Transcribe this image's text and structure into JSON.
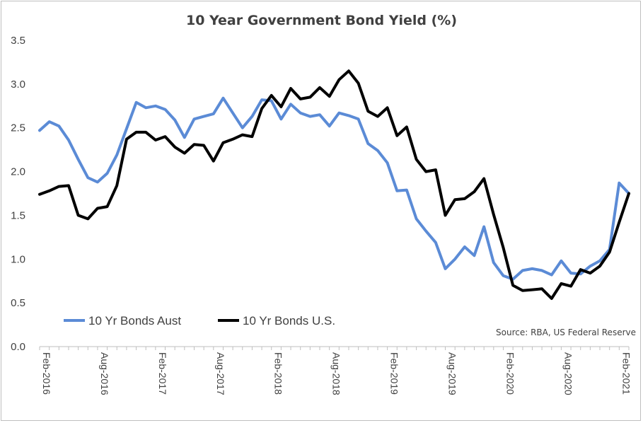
{
  "chart_data": {
    "type": "line",
    "title": "10 Year Government Bond Yield (%)",
    "xlabel": "",
    "ylabel": "",
    "ylim": [
      0,
      3.5
    ],
    "yticks": [
      "0.0",
      "0.5",
      "1.0",
      "1.5",
      "2.0",
      "2.5",
      "3.0",
      "3.5"
    ],
    "xtick_labels": [
      "Feb-2016",
      "Aug-2016",
      "Feb-2017",
      "Aug-2017",
      "Feb-2018",
      "Aug-2018",
      "Feb-2019",
      "Aug-2019",
      "Feb-2020",
      "Aug-2020",
      "Feb-2021"
    ],
    "x_start": "Feb-2016",
    "x_end": "Mar-2021",
    "grid": false,
    "legend_position": "bottom-left",
    "source": "Source: RBA, US Federal Reserve",
    "series": [
      {
        "name": "10 Yr Bonds Aust",
        "color": "#5b8bd6",
        "values": [
          2.47,
          2.57,
          2.52,
          2.36,
          2.14,
          1.93,
          1.88,
          1.98,
          2.19,
          2.49,
          2.79,
          2.73,
          2.75,
          2.71,
          2.59,
          2.39,
          2.6,
          2.63,
          2.66,
          2.84,
          2.67,
          2.5,
          2.63,
          2.82,
          2.81,
          2.6,
          2.77,
          2.67,
          2.63,
          2.65,
          2.52,
          2.67,
          2.64,
          2.6,
          2.32,
          2.24,
          2.1,
          1.78,
          1.79,
          1.46,
          1.32,
          1.19,
          0.89,
          1.0,
          1.14,
          1.04,
          1.37,
          0.96,
          0.81,
          0.77,
          0.87,
          0.89,
          0.87,
          0.82,
          0.98,
          0.84,
          0.83,
          0.92,
          0.98,
          1.11,
          1.87,
          1.75
        ]
      },
      {
        "name": "10 Yr Bonds U.S.",
        "color": "#000000",
        "values": [
          1.74,
          1.78,
          1.83,
          1.84,
          1.5,
          1.46,
          1.58,
          1.6,
          1.84,
          2.37,
          2.45,
          2.45,
          2.36,
          2.4,
          2.28,
          2.21,
          2.31,
          2.3,
          2.12,
          2.33,
          2.37,
          2.42,
          2.4,
          2.72,
          2.87,
          2.74,
          2.95,
          2.83,
          2.85,
          2.96,
          2.86,
          3.05,
          3.15,
          3.01,
          2.69,
          2.63,
          2.73,
          2.41,
          2.51,
          2.14,
          2.0,
          2.02,
          1.5,
          1.68,
          1.69,
          1.77,
          1.92,
          1.51,
          1.13,
          0.7,
          0.64,
          0.65,
          0.66,
          0.55,
          0.72,
          0.69,
          0.88,
          0.84,
          0.92,
          1.08,
          1.42,
          1.75
        ]
      }
    ]
  }
}
